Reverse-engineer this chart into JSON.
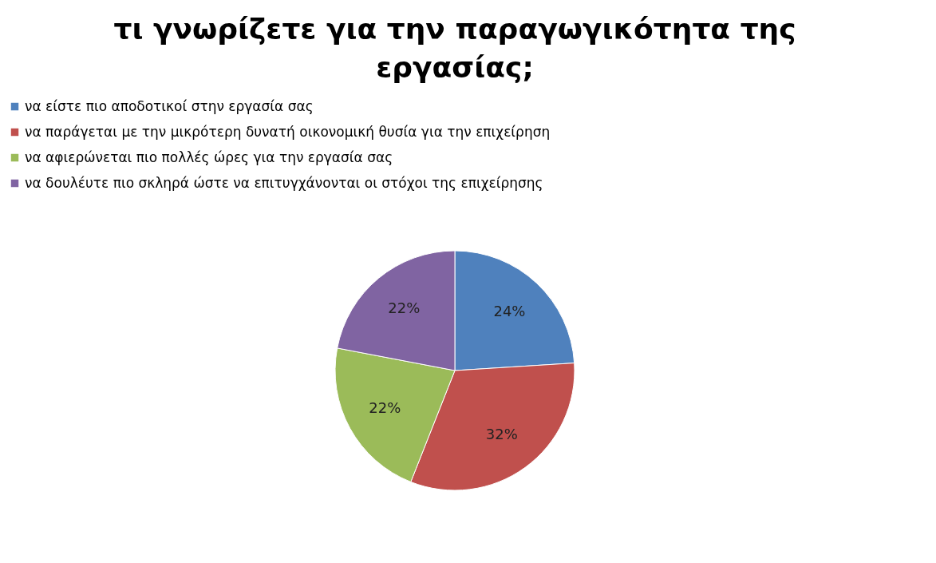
{
  "chart_data": {
    "type": "pie",
    "title": "τι γνωρίζετε για την παραγωγικότητα της εργασίας;",
    "categories": [
      "να είστε πιο αποδοτικοί στην εργασία σας",
      "να παράγεται με την μικρότερη δυνατή οικονομική θυσία για την επιχείρηση",
      "να αφιερώνεται πιο πολλές ώρες για την εργασία σας",
      "να δουλέυτε πιο σκληρά ώστε να επιτυγχάνονται οι στόχοι της επιχείρησης"
    ],
    "values": [
      24,
      32,
      22,
      22
    ],
    "value_labels": [
      "24%",
      "32%",
      "22%",
      "22%"
    ],
    "colors": [
      "#4f81bd",
      "#c0504d",
      "#9bbb59",
      "#8064a2"
    ],
    "legend": "top"
  }
}
